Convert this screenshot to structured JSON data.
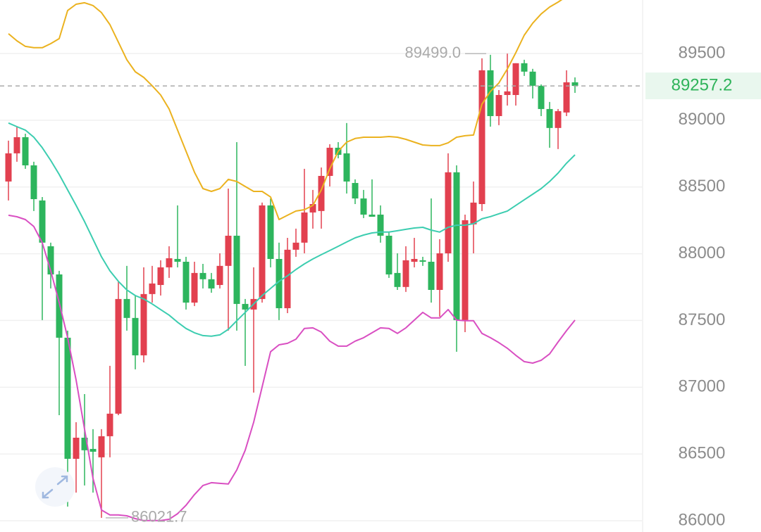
{
  "chart_data": {
    "type": "candlestick",
    "ylim": [
      85915.7,
      89900.6
    ],
    "yticks": [
      86000,
      86500,
      87000,
      87500,
      88000,
      88500,
      89000,
      89500
    ],
    "grid": true,
    "up_color": "#e2404f",
    "down_color": "#2db55d",
    "open": [
      88541,
      88752,
      88873,
      88662,
      88399,
      88056,
      87845,
      87371,
      86464,
      86622,
      86538,
      86475,
      86633,
      86802,
      87661,
      87519,
      87239,
      87698,
      87766,
      87898,
      87961,
      87940,
      87634,
      87856,
      87809,
      87766,
      87909,
      88135,
      87624,
      87582,
      87661,
      88362,
      87961,
      87592,
      88030,
      88083,
      88309,
      88320,
      88583,
      88794,
      88752,
      88530,
      88414,
      88293,
      88293,
      88135,
      87856,
      87751,
      87940,
      87951,
      87940,
      87729,
      88003,
      88610,
      87503,
      88220,
      88372,
      89374,
      89031,
      89189,
      89189,
      89427,
      89364,
      89258,
      89084,
      88942,
      89058,
      89284
    ],
    "high": [
      88847,
      88952,
      88899,
      88689,
      88425,
      88083,
      87872,
      87424,
      86738,
      86949,
      86686,
      86686,
      87160,
      87793,
      87909,
      87687,
      87898,
      87909,
      87951,
      88056,
      88362,
      87977,
      87940,
      87924,
      87856,
      88003,
      88488,
      88836,
      87661,
      87898,
      88383,
      88414,
      88083,
      88119,
      88188,
      88636,
      88478,
      88646,
      88820,
      88836,
      88979,
      88557,
      88478,
      88557,
      88362,
      88162,
      88003,
      88056,
      88119,
      87977,
      88414,
      88109,
      88752,
      88662,
      88293,
      88541,
      89464,
      89490,
      89226,
      89499.0,
      89427,
      89453,
      89385,
      89268,
      89137,
      89084,
      89374,
      89321
    ],
    "low": [
      88399,
      88689,
      88636,
      88320,
      87503,
      87740,
      86791,
      86106,
      86211,
      86264,
      86211,
      86021.7,
      86475,
      86791,
      87424,
      87134,
      87186,
      87634,
      87687,
      87819,
      87898,
      87582,
      87608,
      87740,
      87708,
      87740,
      87424,
      87424,
      87160,
      86960,
      87634,
      87898,
      87503,
      87555,
      87977,
      88003,
      88188,
      88188,
      88504,
      88715,
      88451,
      88372,
      88267,
      88277,
      88083,
      87819,
      87729,
      87714,
      87898,
      87909,
      87634,
      87529,
      87940,
      87266,
      87413,
      88003,
      88320,
      88952,
      88963,
      89110,
      89110,
      89332,
      89163,
      89031,
      88794,
      88784,
      89031,
      89205
    ],
    "close": [
      88752,
      88873,
      88662,
      88409,
      88083,
      87845,
      87371,
      86464,
      86622,
      86528,
      86517,
      86633,
      86802,
      87661,
      87519,
      87239,
      87698,
      87777,
      87898,
      87966,
      87940,
      87634,
      87856,
      87809,
      87740,
      87909,
      88135,
      87624,
      87582,
      87661,
      88362,
      87961,
      87592,
      88030,
      88083,
      88309,
      88372,
      88583,
      88794,
      88741,
      88541,
      88414,
      88293,
      88277,
      88135,
      87845,
      87751,
      87951,
      87961,
      87940,
      87729,
      88003,
      88610,
      87503,
      88251,
      88383,
      89374,
      89031,
      89189,
      89216,
      89427,
      89364,
      89258,
      89084,
      88942,
      89068,
      89284,
      89257.2
    ],
    "overlays": [
      {
        "color": "#ebb21f",
        "values": [
          89648,
          89595,
          89553,
          89543,
          89543,
          89574,
          89611,
          89822,
          89869,
          89880,
          89859,
          89806,
          89716,
          89585,
          89453,
          89363,
          89321,
          89258,
          89189,
          89084,
          88926,
          88768,
          88610,
          88488,
          88467,
          88488,
          88557,
          88541,
          88504,
          88467,
          88467,
          88425,
          88256,
          88288,
          88320,
          88330,
          88362,
          88478,
          88636,
          88768,
          88836,
          88863,
          88873,
          88873,
          88873,
          88878,
          88873,
          88857,
          88836,
          88815,
          88810,
          88810,
          88831,
          88873,
          88884,
          88889,
          89121,
          89216,
          89279,
          89384,
          89506,
          89637,
          89727,
          89796,
          89848,
          89885,
          89927,
          89964
        ]
      },
      {
        "color": "#3ccdb0",
        "values": [
          88979,
          88952,
          88926,
          88873,
          88794,
          88699,
          88594,
          88478,
          88362,
          88241,
          88109,
          87977,
          87872,
          87793,
          87729,
          87687,
          87661,
          87624,
          87582,
          87540,
          87487,
          87440,
          87408,
          87387,
          87382,
          87392,
          87434,
          87498,
          87561,
          87624,
          87687,
          87740,
          87793,
          87835,
          87882,
          87924,
          87961,
          87993,
          88024,
          88056,
          88088,
          88119,
          88140,
          88156,
          88162,
          88162,
          88172,
          88183,
          88193,
          88198,
          88177,
          88162,
          88198,
          88214,
          88214,
          88225,
          88262,
          88278,
          88299,
          88320,
          88362,
          88404,
          88446,
          88488,
          88541,
          88604,
          88678,
          88741
        ]
      },
      {
        "color": "#d94fc2",
        "values": [
          88288,
          88277,
          88256,
          88204,
          88082,
          87872,
          87634,
          87371,
          87055,
          86686,
          86317,
          86080,
          86043,
          86043,
          86037,
          86016,
          86001,
          86001,
          86001,
          86011,
          86053,
          86116,
          86196,
          86264,
          86285,
          86280,
          86275,
          86380,
          86528,
          86738,
          87002,
          87266,
          87318,
          87329,
          87360,
          87440,
          87445,
          87413,
          87345,
          87308,
          87308,
          87345,
          87371,
          87408,
          87445,
          87440,
          87403,
          87445,
          87503,
          87561,
          87519,
          87519,
          87582,
          87503,
          87498,
          87498,
          87403,
          87371,
          87334,
          87292,
          87239,
          87192,
          87181,
          87202,
          87250,
          87339,
          87424,
          87503
        ]
      }
    ],
    "last_price": 89257.2,
    "last_price_color": "#2fb35a",
    "max_label": {
      "value": 89499.0,
      "label": "89499.0"
    },
    "min_label": 86021.7
  }
}
